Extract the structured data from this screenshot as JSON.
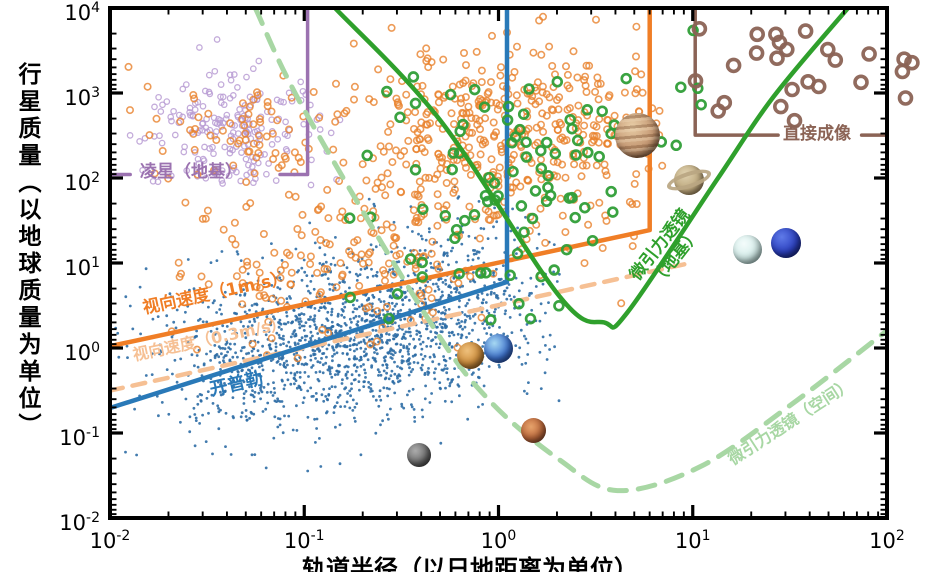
{
  "chart_data": {
    "type": "scatter",
    "title": "",
    "xlabel": "轨道半径（以日地距离为单位）",
    "ylabel": "行星质量（以地球质量为单位）",
    "log_axes": true,
    "x_range_au": [
      0.01,
      100
    ],
    "y_range_earth_mass": [
      0.01,
      10000
    ],
    "x_axis_exponents": [
      -2,
      -1,
      0,
      1,
      2
    ],
    "y_axis_exponents": [
      4,
      3,
      2,
      1,
      0,
      -1,
      -2
    ],
    "grid": false,
    "curves": [
      {
        "id": "kepler",
        "label": "开普勒",
        "color": "#2979B8",
        "width": 4.5,
        "dash": null,
        "smooth": false,
        "segments": [
          [
            [
              0.01,
              0.197
            ],
            [
              1.106,
              5.98
            ],
            [
              1.106,
              10000
            ]
          ]
        ]
      },
      {
        "id": "rv-1ms",
        "label": "视向速度（1m/s）",
        "color": "#F07E26",
        "width": 4.5,
        "dash": null,
        "smooth": false,
        "segments": [
          [
            [
              0.01,
              1.05
            ],
            [
              6.0,
              24.4
            ],
            [
              6.0,
              10000
            ]
          ]
        ]
      },
      {
        "id": "rv-03ms",
        "label": "视向速度（0.3m/s）",
        "color": "#F6C094",
        "width": 4.5,
        "dash": "13 10",
        "smooth": false,
        "segments": [
          [
            [
              0.01,
              0.315
            ],
            [
              9.7,
              10.0
            ]
          ]
        ]
      },
      {
        "id": "ml-ground",
        "label": "微引力透镜（地基）",
        "color": "#2FA02C",
        "width": 4.5,
        "dash": null,
        "smooth": true,
        "segments": [
          [
            [
              0.144,
              10000
            ],
            [
              0.5,
              481
            ],
            [
              2.07,
              4.0
            ],
            [
              3.5,
              2.0
            ],
            [
              4.6,
              2.6
            ],
            [
              13.3,
              95
            ],
            [
              26,
              900
            ],
            [
              63,
              10000
            ]
          ]
        ]
      },
      {
        "id": "ml-space",
        "label": "微引力透镜（空间）",
        "color": "#A8D7A4",
        "width": 5,
        "dash": "17 12",
        "smooth": true,
        "segments": [
          [
            [
              0.056,
              10000
            ],
            [
              0.1,
              631
            ],
            [
              0.44,
              2.1
            ],
            [
              0.9,
              0.24
            ],
            [
              2.07,
              0.048
            ],
            [
              4.1,
              0.021
            ],
            [
              10.9,
              0.04
            ],
            [
              31.6,
              0.21
            ],
            [
              100,
              1.6
            ]
          ]
        ]
      },
      {
        "id": "transit-ground",
        "label": "凌星（地基）",
        "color": "#9B72B0",
        "width": 3.5,
        "dash": null,
        "smooth": false,
        "segments": [
          [
            [
              0.01,
              110
            ],
            [
              0.0127,
              110
            ]
          ],
          [
            [
              0.075,
              110
            ],
            [
              0.104,
              110
            ],
            [
              0.104,
              10000
            ]
          ]
        ]
      },
      {
        "id": "direct-imaging",
        "label": "直接成像",
        "color": "#8B6355",
        "width": 3.5,
        "dash": null,
        "smooth": false,
        "segments": [
          [
            [
              10.3,
              10000
            ],
            [
              10.3,
              320
            ],
            [
              27.5,
              320
            ]
          ],
          [
            [
              74,
              320
            ],
            [
              100,
              320
            ]
          ]
        ]
      }
    ],
    "scatter_series": [
      {
        "id": "transit-ground-planets",
        "marker": "open-circle",
        "color": "#B89CD4",
        "r": 2.7,
        "stroke": 1.3,
        "opacity": 0.85,
        "blobs": [
          {
            "n": 210,
            "cx": -1.38,
            "cy": 2.5,
            "sx": 0.22,
            "sy": 0.35
          }
        ],
        "clip": {
          "amin": -1.98,
          "amax": -0.72,
          "mmin": 1.9,
          "mmax": 3.9
        }
      },
      {
        "id": "kepler-candidates",
        "marker": "dot",
        "color": "#2E6DA5",
        "r": 1.4,
        "stroke": 0,
        "opacity": 0.9,
        "blobs": [
          {
            "n": 1200,
            "cx": -0.7,
            "cy": 0.15,
            "sx": 0.42,
            "sy": 0.42
          },
          {
            "n": 300,
            "cx": -0.25,
            "cy": 0.75,
            "sx": 0.35,
            "sy": 0.45
          },
          {
            "n": 300,
            "cx": -1.25,
            "cy": -0.35,
            "sx": 0.35,
            "sy": 0.45
          }
        ],
        "clip": {
          "amin": -1.98,
          "amax": 0.32,
          "mmin": -1.55,
          "mmax": 1.95
        }
      },
      {
        "id": "rv-planets",
        "marker": "open-circle",
        "color": "#E8822D",
        "r": 3.2,
        "stroke": 1.6,
        "opacity": 0.8,
        "blobs": [
          {
            "n": 70,
            "cx": -1.35,
            "cy": 2.5,
            "sx": 0.22,
            "sy": 0.33
          },
          {
            "n": 430,
            "cx": 0.05,
            "cy": 2.6,
            "sx": 0.45,
            "sy": 0.55
          },
          {
            "n": 140,
            "cx": -0.55,
            "cy": 1.25,
            "sx": 0.5,
            "sy": 0.55
          },
          {
            "n": 60,
            "cx": -1.1,
            "cy": 0.7,
            "sx": 0.45,
            "sy": 0.5
          }
        ],
        "clip": {
          "amin": -1.98,
          "amax": 0.85,
          "mmin": -0.3,
          "mmax": 3.95
        }
      },
      {
        "id": "microlensing-planets",
        "marker": "donut",
        "color": "#2F9E37",
        "r": 4.4,
        "stroke": 2.7,
        "opacity": 0.95,
        "blobs": [
          {
            "n": 72,
            "cx": 0.15,
            "cy": 2.1,
            "sx": 0.42,
            "sy": 0.75
          },
          {
            "n": 18,
            "cx": -0.2,
            "cy": 0.9,
            "sx": 0.45,
            "sy": 0.55
          },
          {
            "n": 4,
            "cx": 0.95,
            "cy": 3.2,
            "sx": 0.1,
            "sy": 0.45
          }
        ],
        "clip": {
          "amin": -0.95,
          "amax": 1.12,
          "mmin": -0.15,
          "mmax": 3.95
        }
      },
      {
        "id": "direct-imaging-planets",
        "marker": "donut",
        "color": "#8B6355",
        "r": 6,
        "stroke": 3.6,
        "opacity": 0.95,
        "blobs": [
          {
            "n": 30,
            "cx": 1.6,
            "cy": 3.3,
            "sx": 0.35,
            "sy": 0.42
          },
          {
            "n": 2,
            "cx": 0.41,
            "cy": 3.53,
            "sx": 0.05,
            "sy": 0.1
          }
        ],
        "clip": {
          "amin": 0.95,
          "amax": 2.18,
          "mmin": 2.42,
          "mmax": 4.05
        },
        "no_plot_clip": true
      }
    ],
    "planets": [
      {
        "id": "mercury",
        "a_au": 0.39,
        "mass_earth": 0.055
      },
      {
        "id": "venus",
        "a_au": 0.72,
        "mass_earth": 0.82
      },
      {
        "id": "earth",
        "a_au": 1.0,
        "mass_earth": 1.0
      },
      {
        "id": "mars",
        "a_au": 1.52,
        "mass_earth": 0.107
      },
      {
        "id": "jupiter",
        "a_au": 5.2,
        "mass_earth": 318
      },
      {
        "id": "saturn",
        "a_au": 9.6,
        "mass_earth": 95
      },
      {
        "id": "uranus",
        "a_au": 19.2,
        "mass_earth": 14.5
      },
      {
        "id": "neptune",
        "a_au": 30.1,
        "mass_earth": 17.2
      }
    ]
  }
}
